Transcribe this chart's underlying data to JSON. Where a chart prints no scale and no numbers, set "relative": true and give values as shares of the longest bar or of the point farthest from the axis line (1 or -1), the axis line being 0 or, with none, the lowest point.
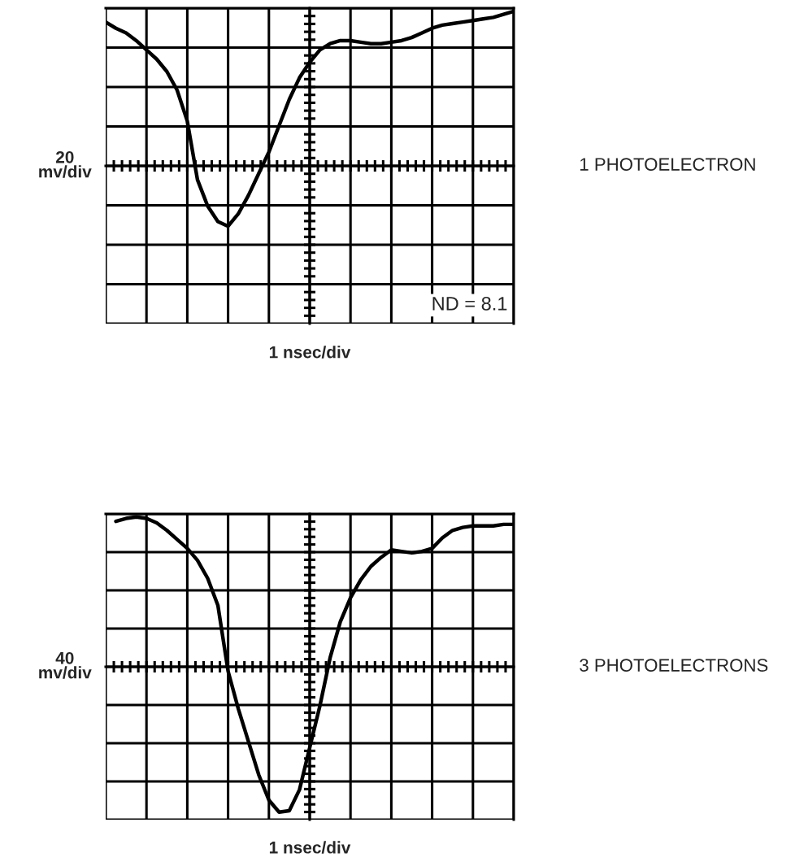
{
  "chart_data": [
    {
      "type": "line",
      "ylabel": "20\nmv/div",
      "xlabel": "1 nsec/div",
      "relative": true,
      "grid": true,
      "tick_labels": false,
      "annotations": [
        "1 PHOTOELECTRON",
        "ND = 8.1"
      ],
      "categories": [
        null,
        null,
        null,
        null,
        null,
        null,
        null,
        null,
        null,
        null,
        null,
        null,
        null,
        null,
        null,
        null,
        null,
        null,
        null,
        null,
        null,
        null,
        null,
        null,
        null,
        null,
        null,
        null,
        null,
        null,
        null,
        null,
        null,
        null,
        null,
        null,
        null,
        null,
        null,
        null,
        null
      ],
      "series": [
        {
          "color": "#000000",
          "values": [
            0.93,
            0.89,
            0.86,
            0.81,
            0.75,
            0.69,
            0.61,
            0.49,
            0.29,
            -0.09,
            -0.26,
            -0.36,
            -0.39,
            -0.31,
            -0.19,
            -0.05,
            0.09,
            0.26,
            0.43,
            0.57,
            0.67,
            0.75,
            0.79,
            0.81,
            0.81,
            0.8,
            0.79,
            0.79,
            0.8,
            0.81,
            0.83,
            0.86,
            0.89,
            0.91,
            0.92,
            0.93,
            0.94,
            0.95,
            0.96,
            0.98,
            1
          ]
        }
      ]
    },
    {
      "type": "line",
      "ylabel": "40\nmv/div",
      "xlabel": "1 nsec/div",
      "relative": true,
      "grid": true,
      "tick_labels": false,
      "annotations": [
        "3 PHOTOELECTRONS"
      ],
      "categories": [
        null,
        null,
        null,
        null,
        null,
        null,
        null,
        null,
        null,
        null,
        null,
        null,
        null,
        null,
        null,
        null,
        null,
        null,
        null,
        null,
        null,
        null,
        null,
        null,
        null,
        null,
        null,
        null,
        null,
        null,
        null,
        null,
        null,
        null,
        null,
        null,
        null,
        null,
        null,
        null,
        null
      ],
      "series": [
        {
          "color": "#000000",
          "values": [
            null,
            0.97,
            0.99,
            1,
            0.99,
            0.96,
            0.91,
            0.85,
            0.79,
            0.71,
            0.59,
            0.41,
            -0.03,
            -0.28,
            -0.5,
            -0.72,
            -0.89,
            -0.97,
            -0.96,
            -0.82,
            -0.54,
            -0.26,
            0.06,
            0.3,
            0.46,
            0.58,
            0.67,
            0.73,
            0.78,
            0.77,
            0.76,
            0.77,
            0.79,
            0.86,
            0.91,
            0.93,
            0.94,
            0.94,
            0.94,
            0.95,
            0.95
          ]
        }
      ]
    }
  ]
}
